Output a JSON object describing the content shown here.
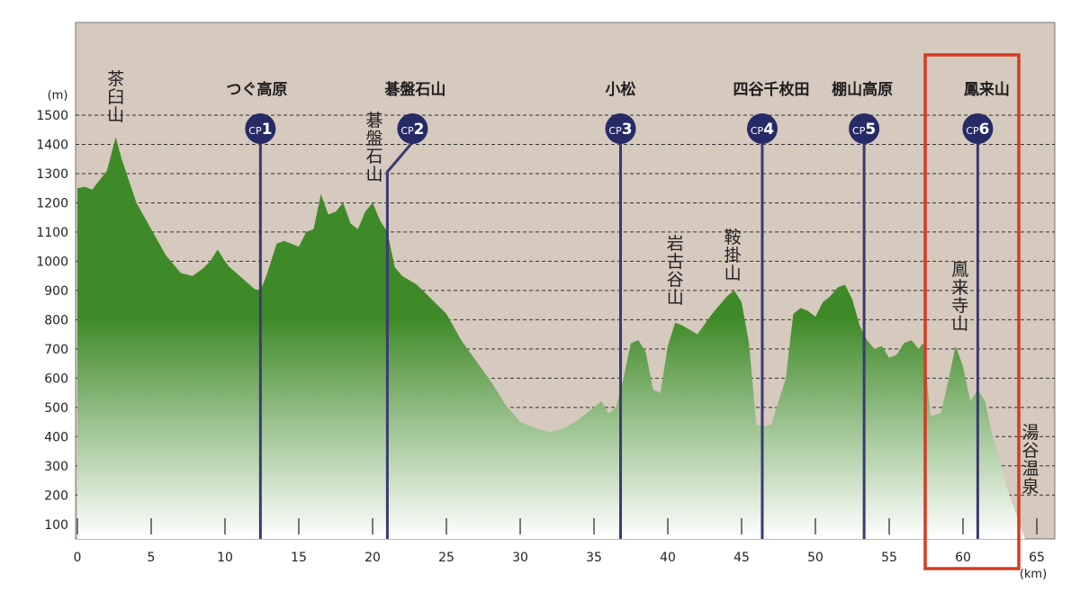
{
  "chart_data": {
    "type": "area",
    "title": "",
    "xlabel": "",
    "ylabel": "",
    "y_unit": "(m)",
    "x_unit": "(km)",
    "xlim": [
      0,
      65
    ],
    "ylim": [
      50,
      1750
    ],
    "x_ticks": [
      0,
      5,
      10,
      15,
      20,
      25,
      30,
      35,
      40,
      45,
      50,
      55,
      60,
      65
    ],
    "y_ticks": [
      100,
      200,
      300,
      400,
      500,
      600,
      700,
      800,
      900,
      1000,
      1100,
      1200,
      1300,
      1400,
      1500
    ],
    "dashed_gridlines_at": [
      200,
      300,
      400,
      500,
      600,
      700,
      800,
      900,
      1000,
      1100,
      1200,
      1300,
      1400,
      1500
    ],
    "colors": {
      "background": "#d6c9bd",
      "fill_top": "#3f8a28",
      "fill_bottom": "#ffffff",
      "checkpoint_line": "#3a3a72",
      "checkpoint_circle": "#262a66",
      "highlight_box": "#d63a22"
    },
    "series": [
      {
        "x": [
          0,
          0.5,
          1,
          2,
          2.6,
          3,
          4,
          5,
          6,
          7,
          7.8,
          8.5,
          9,
          9.5,
          10,
          10.3,
          11,
          12,
          12.4,
          12.8,
          13.5,
          14,
          15,
          15.5,
          16,
          16.5,
          17,
          17.5,
          18,
          18.5,
          19,
          19.5,
          20,
          20.5,
          21,
          21.5,
          22,
          23,
          24,
          25,
          26,
          27,
          28,
          29,
          30,
          31,
          32,
          33,
          34,
          35,
          35.5,
          36,
          36.5,
          37,
          37.5,
          38,
          38.5,
          39,
          39.5,
          40,
          40.5,
          41,
          42,
          43,
          44,
          44.5,
          45,
          45.5,
          46,
          46.5,
          47,
          48,
          48.5,
          49,
          49.5,
          50,
          50.5,
          51,
          51.5,
          52,
          52.5,
          53,
          53.5,
          54,
          54.5,
          55,
          55.5,
          56,
          56.5,
          57,
          57.3,
          57.8,
          58.5,
          59,
          59.5,
          60,
          60.5,
          61,
          61.5,
          62,
          62.5,
          63,
          63.5,
          64.2
        ],
        "values": [
          1250,
          1255,
          1245,
          1310,
          1425,
          1350,
          1200,
          1110,
          1020,
          960,
          950,
          975,
          1000,
          1040,
          1000,
          980,
          950,
          905,
          900,
          950,
          1060,
          1070,
          1050,
          1100,
          1110,
          1230,
          1160,
          1170,
          1200,
          1130,
          1110,
          1170,
          1200,
          1140,
          1100,
          980,
          950,
          920,
          870,
          820,
          730,
          660,
          590,
          510,
          450,
          430,
          415,
          430,
          460,
          500,
          520,
          480,
          500,
          600,
          720,
          730,
          690,
          560,
          550,
          710,
          790,
          780,
          750,
          820,
          880,
          900,
          860,
          720,
          440,
          435,
          440,
          600,
          820,
          840,
          830,
          810,
          860,
          880,
          910,
          920,
          870,
          780,
          730,
          700,
          710,
          670,
          680,
          720,
          730,
          700,
          720,
          470,
          480,
          590,
          710,
          640,
          520,
          560,
          520,
          400,
          320,
          220,
          150,
          50
        ]
      }
    ],
    "checkpoints": [
      {
        "label": "CP",
        "number": "1",
        "km": 12.4,
        "name": "つぐ高原"
      },
      {
        "label": "CP",
        "number": "2",
        "km": 21.0,
        "name": "碁盤石山"
      },
      {
        "label": "CP",
        "number": "3",
        "km": 36.8,
        "name": "小松"
      },
      {
        "label": "CP",
        "number": "4",
        "km": 46.4,
        "name": "四谷千枚田"
      },
      {
        "label": "CP",
        "number": "5",
        "km": 53.3,
        "name": "棚山高原"
      },
      {
        "label": "CP",
        "number": "6",
        "km": 61.0,
        "name": "鳳来山"
      }
    ],
    "peaks": [
      {
        "name": "茶臼山",
        "km": 2.6
      },
      {
        "name": "碁盤石山",
        "km": 20.1
      },
      {
        "name": "岩古谷山",
        "km": 40.5
      },
      {
        "name": "鞍掛山",
        "km": 44.4
      },
      {
        "name": "鳳来寺山",
        "km": 59.8
      },
      {
        "name": "湯谷温泉",
        "km": 64.8
      }
    ],
    "highlight": {
      "label": "鳳来山",
      "x_start_km": 57.4,
      "x_end_km": 63.8
    }
  }
}
